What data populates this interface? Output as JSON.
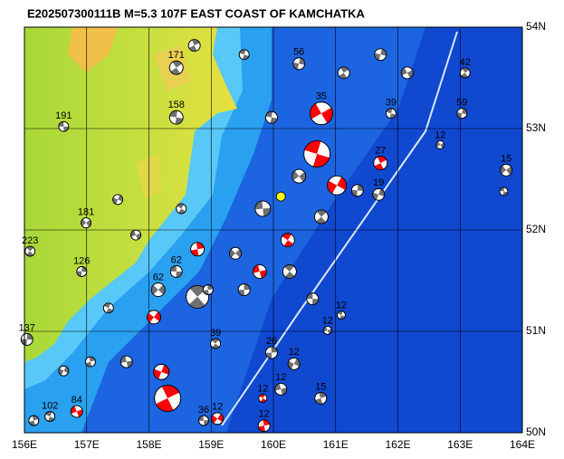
{
  "map": {
    "title": "E202507300111B M=5.3 107F EAST COAST OF KAMCHATKA",
    "lonlim": [
      156,
      164
    ],
    "latlim": [
      50,
      54
    ],
    "lonticks": [
      {
        "value": 156,
        "label": "156E"
      },
      {
        "value": 157,
        "label": "157E"
      },
      {
        "value": 158,
        "label": "158E"
      },
      {
        "value": 159,
        "label": "159E"
      },
      {
        "value": 160,
        "label": "160E"
      },
      {
        "value": 161,
        "label": "161E"
      },
      {
        "value": 162,
        "label": "162E"
      },
      {
        "value": 163,
        "label": "163E"
      },
      {
        "value": 164,
        "label": "164E"
      }
    ],
    "latticks": [
      {
        "value": 50,
        "label": "50N"
      },
      {
        "value": 51,
        "label": "51N"
      },
      {
        "value": 52,
        "label": "52N"
      },
      {
        "value": 53,
        "label": "53N"
      },
      {
        "value": 54,
        "label": "54N"
      }
    ],
    "epicenter": {
      "lon": 160.12,
      "lat": 52.33,
      "color": "#ffff00"
    },
    "colors": {
      "red": "#ff0000",
      "gray": "#707070"
    },
    "events": [
      {
        "label": "191",
        "lon": 156.63,
        "lat": 53.02,
        "mag": 5.0,
        "color": "gray"
      },
      {
        "label": "223",
        "lon": 156.09,
        "lat": 51.79,
        "mag": 5.0,
        "color": "gray"
      },
      {
        "label": "137",
        "lon": 156.04,
        "lat": 50.92,
        "mag": 5.2,
        "color": "gray"
      },
      {
        "label": "15",
        "lon": 163.74,
        "lat": 52.59,
        "mag": 5.2,
        "color": "gray"
      },
      {
        "label": null,
        "lon": 163.7,
        "lat": 52.38,
        "mag": 4.8,
        "color": "gray"
      },
      {
        "label": "42",
        "lon": 163.08,
        "lat": 53.55,
        "mag": 5.0,
        "color": "gray"
      },
      {
        "label": "59",
        "lon": 163.03,
        "lat": 53.15,
        "mag": 5.0,
        "color": "gray"
      },
      {
        "label": "12",
        "lon": 162.68,
        "lat": 52.84,
        "mag": 4.8,
        "color": "gray"
      },
      {
        "label": "39",
        "lon": 161.89,
        "lat": 53.15,
        "mag": 5.0,
        "color": "gray"
      },
      {
        "label": "27",
        "lon": 161.72,
        "lat": 52.66,
        "mag": 5.4,
        "color": "red"
      },
      {
        "label": "19",
        "lon": 161.69,
        "lat": 52.35,
        "mag": 5.2,
        "color": "gray"
      },
      {
        "label": "12",
        "lon": 160.87,
        "lat": 51.01,
        "mag": 4.8,
        "color": "gray"
      },
      {
        "label": "12",
        "lon": 161.09,
        "lat": 51.16,
        "mag": 4.8,
        "color": "gray"
      },
      {
        "label": "15",
        "lon": 160.76,
        "lat": 50.34,
        "mag": 5.2,
        "color": "gray"
      },
      {
        "label": "12",
        "lon": 160.33,
        "lat": 50.68,
        "mag": 5.2,
        "color": "gray"
      },
      {
        "label": "12",
        "lon": 160.12,
        "lat": 50.43,
        "mag": 5.2,
        "color": "gray"
      },
      {
        "label": "12",
        "lon": 159.83,
        "lat": 50.34,
        "mag": 4.8,
        "color": "red"
      },
      {
        "label": "12",
        "lon": 159.85,
        "lat": 50.07,
        "mag": 5.2,
        "color": "red"
      },
      {
        "label": "12",
        "lon": 159.1,
        "lat": 50.14,
        "mag": 5.2,
        "color": "red"
      },
      {
        "label": "36",
        "lon": 158.88,
        "lat": 50.12,
        "mag": 5.0,
        "color": "gray"
      },
      {
        "label": "39",
        "lon": 159.07,
        "lat": 50.88,
        "mag": 5.0,
        "color": "gray"
      },
      {
        "label": "26",
        "lon": 159.97,
        "lat": 50.79,
        "mag": 5.2,
        "color": "gray"
      },
      {
        "label": "62",
        "lon": 158.15,
        "lat": 51.41,
        "mag": 5.4,
        "color": "gray"
      },
      {
        "label": "62",
        "lon": 158.44,
        "lat": 51.59,
        "mag": 5.2,
        "color": "gray"
      },
      {
        "label": null,
        "lon": 158.78,
        "lat": 51.34,
        "mag": 6.4,
        "color": "gray"
      },
      {
        "label": "126",
        "lon": 156.92,
        "lat": 51.59,
        "mag": 5.0,
        "color": "gray"
      },
      {
        "label": "181",
        "lon": 156.99,
        "lat": 52.07,
        "mag": 5.0,
        "color": "gray"
      },
      {
        "label": "158",
        "lon": 158.44,
        "lat": 53.11,
        "mag": 5.4,
        "color": "gray"
      },
      {
        "label": "171",
        "lon": 158.44,
        "lat": 53.6,
        "mag": 5.4,
        "color": "gray"
      },
      {
        "label": "56",
        "lon": 160.41,
        "lat": 53.64,
        "mag": 5.2,
        "color": "gray"
      },
      {
        "label": "35",
        "lon": 160.77,
        "lat": 53.15,
        "mag": 6.4,
        "color": "red"
      },
      {
        "label": null,
        "lon": 160.7,
        "lat": 52.75,
        "mag": 6.8,
        "color": "red"
      },
      {
        "label": null,
        "lon": 158.3,
        "lat": 50.34,
        "mag": 6.8,
        "color": "red"
      },
      {
        "label": null,
        "lon": 158.2,
        "lat": 50.6,
        "mag": 5.6,
        "color": "red"
      },
      {
        "label": "84",
        "lon": 156.84,
        "lat": 50.21,
        "mag": 5.2,
        "color": "red"
      },
      {
        "label": "102",
        "lon": 156.41,
        "lat": 50.16,
        "mag": 5.0,
        "color": "gray"
      },
      {
        "label": null,
        "lon": 156.15,
        "lat": 50.12,
        "mag": 5.0,
        "color": "gray"
      },
      {
        "label": null,
        "lon": 161.02,
        "lat": 52.44,
        "mag": 6.0,
        "color": "red"
      },
      {
        "label": null,
        "lon": 159.78,
        "lat": 51.59,
        "mag": 5.4,
        "color": "red"
      },
      {
        "label": null,
        "lon": 160.23,
        "lat": 51.9,
        "mag": 5.4,
        "color": "red"
      },
      {
        "label": null,
        "lon": 158.78,
        "lat": 51.81,
        "mag": 5.4,
        "color": "red"
      },
      {
        "label": null,
        "lon": 158.08,
        "lat": 51.14,
        "mag": 5.4,
        "color": "red"
      },
      {
        "label": null,
        "lon": 159.83,
        "lat": 52.21,
        "mag": 5.6,
        "color": "gray"
      },
      {
        "label": null,
        "lon": 160.26,
        "lat": 51.59,
        "mag": 5.4,
        "color": "gray"
      },
      {
        "label": null,
        "lon": 159.53,
        "lat": 51.41,
        "mag": 5.2,
        "color": "gray"
      },
      {
        "label": null,
        "lon": 159.39,
        "lat": 51.77,
        "mag": 5.2,
        "color": "gray"
      },
      {
        "label": null,
        "lon": 160.63,
        "lat": 51.32,
        "mag": 5.2,
        "color": "gray"
      },
      {
        "label": null,
        "lon": 160.77,
        "lat": 52.13,
        "mag": 5.4,
        "color": "gray"
      },
      {
        "label": null,
        "lon": 161.35,
        "lat": 52.39,
        "mag": 5.2,
        "color": "gray"
      },
      {
        "label": null,
        "lon": 160.41,
        "lat": 52.53,
        "mag": 5.4,
        "color": "gray"
      },
      {
        "label": null,
        "lon": 159.97,
        "lat": 53.11,
        "mag": 5.2,
        "color": "gray"
      },
      {
        "label": null,
        "lon": 161.13,
        "lat": 53.55,
        "mag": 5.2,
        "color": "gray"
      },
      {
        "label": null,
        "lon": 161.72,
        "lat": 53.73,
        "mag": 5.2,
        "color": "gray"
      },
      {
        "label": null,
        "lon": 162.15,
        "lat": 53.55,
        "mag": 5.2,
        "color": "gray"
      },
      {
        "label": null,
        "lon": 159.53,
        "lat": 53.73,
        "mag": 5.0,
        "color": "gray"
      },
      {
        "label": null,
        "lon": 158.73,
        "lat": 53.82,
        "mag": 5.2,
        "color": "gray"
      },
      {
        "label": null,
        "lon": 157.5,
        "lat": 52.3,
        "mag": 5.0,
        "color": "gray"
      },
      {
        "label": null,
        "lon": 157.79,
        "lat": 51.95,
        "mag": 5.0,
        "color": "gray"
      },
      {
        "label": null,
        "lon": 157.35,
        "lat": 51.23,
        "mag": 5.0,
        "color": "gray"
      },
      {
        "label": null,
        "lon": 157.06,
        "lat": 50.7,
        "mag": 5.0,
        "color": "gray"
      },
      {
        "label": null,
        "lon": 156.63,
        "lat": 50.61,
        "mag": 5.0,
        "color": "gray"
      },
      {
        "label": null,
        "lon": 157.64,
        "lat": 50.7,
        "mag": 5.2,
        "color": "gray"
      },
      {
        "label": null,
        "lon": 158.52,
        "lat": 52.21,
        "mag": 5.0,
        "color": "gray"
      },
      {
        "label": null,
        "lon": 158.95,
        "lat": 51.41,
        "mag": 5.0,
        "color": "gray"
      }
    ]
  }
}
